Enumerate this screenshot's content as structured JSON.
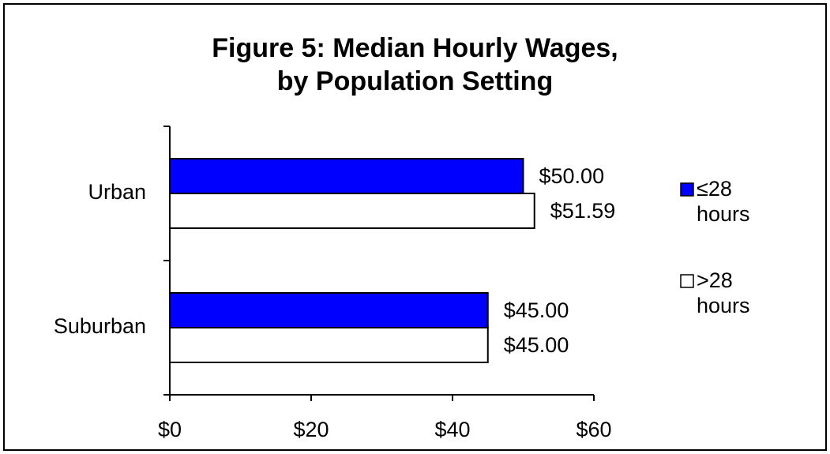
{
  "chart_data": {
    "type": "hbar",
    "title": "Figure 5: Median Hourly Wages,\nby Population Setting",
    "categories": [
      "Urban",
      "Suburban"
    ],
    "series": [
      {
        "name": "≤28 hours",
        "color": "#0000ff",
        "values": [
          50,
          45
        ],
        "value_labels": [
          "$50.00",
          "$45.00"
        ]
      },
      {
        "name": ">28 hours",
        "color": "#ffffff",
        "values": [
          51.59,
          45
        ],
        "value_labels": [
          "$51.59",
          "$45.00"
        ]
      }
    ],
    "xlim": [
      0,
      60
    ],
    "xticks": [
      {
        "value": 0,
        "label": "$0"
      },
      {
        "value": 20,
        "label": "$20"
      },
      {
        "value": 40,
        "label": "$40"
      },
      {
        "value": 60,
        "label": "$60"
      }
    ],
    "legend": "right"
  }
}
